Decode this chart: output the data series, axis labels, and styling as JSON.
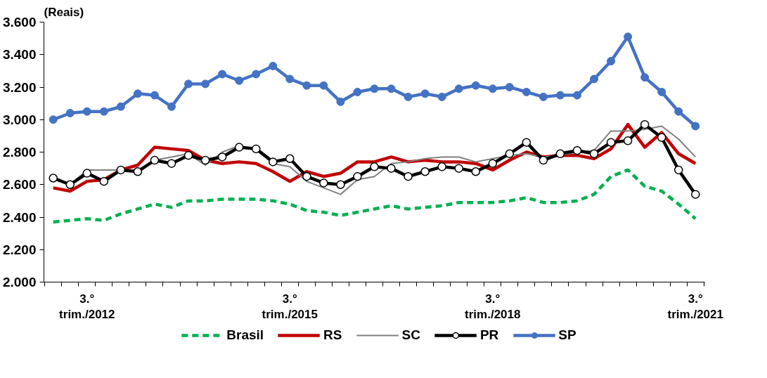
{
  "chart_data": {
    "type": "line",
    "ylabel": "(Reais)",
    "categories": [
      null,
      null,
      "3.°\ntrim./2012",
      null,
      null,
      null,
      null,
      null,
      null,
      null,
      null,
      null,
      null,
      null,
      "3.°\ntrim./2015",
      null,
      null,
      null,
      null,
      null,
      null,
      null,
      null,
      null,
      null,
      null,
      "3.°\ntrim./2018",
      null,
      null,
      null,
      null,
      null,
      null,
      null,
      null,
      null,
      null,
      null,
      "3.°\ntrim./2021"
    ],
    "ylim": [
      2000,
      3600
    ],
    "yticks": [
      {
        "value": 2000,
        "label": "2.000"
      },
      {
        "value": 2200,
        "label": "2.200"
      },
      {
        "value": 2400,
        "label": "2.400"
      },
      {
        "value": 2600,
        "label": "2.600"
      },
      {
        "value": 2800,
        "label": "2.800"
      },
      {
        "value": 3000,
        "label": "3.000"
      },
      {
        "value": 3200,
        "label": "3.200"
      },
      {
        "value": 3400,
        "label": "3.400"
      },
      {
        "value": 3600,
        "label": "3.600"
      }
    ],
    "grid": false,
    "legend": "bottom",
    "series": [
      {
        "name": "Brasil",
        "color": "#00b050",
        "line_style": "dashed",
        "marker": "none",
        "values": [
          2370,
          2380,
          2390,
          2380,
          2420,
          2450,
          2480,
          2460,
          2500,
          2500,
          2510,
          2510,
          2510,
          2500,
          2480,
          2440,
          2430,
          2410,
          2430,
          2450,
          2470,
          2450,
          2460,
          2470,
          2490,
          2490,
          2490,
          2500,
          2520,
          2490,
          2490,
          2500,
          2540,
          2650,
          2690,
          2590,
          2560,
          2480,
          2390
        ]
      },
      {
        "name": "RS",
        "color": "#c00000",
        "line_style": "solid",
        "marker": "none",
        "values": [
          2580,
          2560,
          2620,
          2630,
          2690,
          2720,
          2830,
          2820,
          2810,
          2750,
          2730,
          2740,
          2730,
          2680,
          2620,
          2680,
          2650,
          2670,
          2740,
          2740,
          2770,
          2740,
          2750,
          2740,
          2740,
          2730,
          2690,
          2750,
          2800,
          2770,
          2780,
          2780,
          2760,
          2820,
          2970,
          2830,
          2920,
          2790,
          2730
        ]
      },
      {
        "name": "SC",
        "color": "#808080",
        "line_style": "solid",
        "marker": "none",
        "values": [
          2650,
          2600,
          2690,
          2690,
          2690,
          2690,
          2750,
          2770,
          2790,
          2720,
          2800,
          2840,
          2820,
          2730,
          2710,
          2620,
          2580,
          2540,
          2630,
          2650,
          2730,
          2740,
          2760,
          2770,
          2770,
          2740,
          2760,
          2780,
          2790,
          2770,
          2780,
          2800,
          2810,
          2930,
          2930,
          2940,
          2960,
          2880,
          2770
        ]
      },
      {
        "name": "PR",
        "color": "#000000",
        "line_style": "solid",
        "marker": "circle",
        "values": [
          2640,
          2600,
          2670,
          2620,
          2690,
          2680,
          2750,
          2730,
          2780,
          2750,
          2770,
          2830,
          2820,
          2740,
          2760,
          2650,
          2610,
          2600,
          2650,
          2710,
          2700,
          2650,
          2680,
          2710,
          2700,
          2680,
          2730,
          2790,
          2860,
          2750,
          2790,
          2810,
          2790,
          2860,
          2870,
          2970,
          2890,
          2690,
          2540
        ]
      },
      {
        "name": "SP",
        "color": "#4472c4",
        "line_style": "solid",
        "marker": "circle",
        "values": [
          3000,
          3040,
          3050,
          3050,
          3080,
          3160,
          3150,
          3080,
          3220,
          3220,
          3280,
          3240,
          3280,
          3330,
          3250,
          3210,
          3210,
          3110,
          3170,
          3190,
          3190,
          3140,
          3160,
          3140,
          3190,
          3210,
          3190,
          3200,
          3170,
          3140,
          3150,
          3150,
          3250,
          3360,
          3510,
          3260,
          3170,
          3050,
          2960
        ]
      }
    ]
  }
}
